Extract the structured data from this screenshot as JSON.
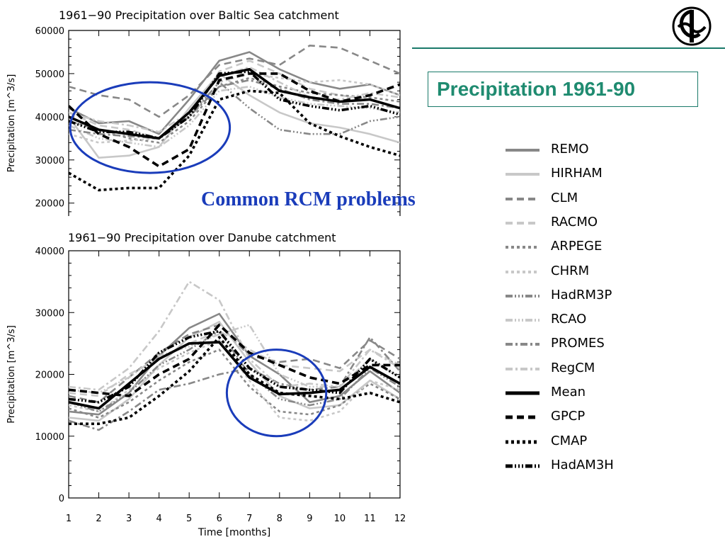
{
  "slide": {
    "title": "Precipitation 1961-90",
    "annotation": "Common RCM problems",
    "accent_color": "#1f8b70",
    "annotation_color": "#1a3cba",
    "logo_icon": "institute-logo-icon"
  },
  "legend": [
    {
      "name": "REMO",
      "color": "#888888",
      "dash": "solid",
      "width": 4
    },
    {
      "name": "HIRHAM",
      "color": "#c8c8c8",
      "dash": "solid",
      "width": 4
    },
    {
      "name": "CLM",
      "color": "#888888",
      "dash": "dash",
      "width": 4
    },
    {
      "name": "RACMO",
      "color": "#c8c8c8",
      "dash": "dash",
      "width": 4
    },
    {
      "name": "ARPEGE",
      "color": "#888888",
      "dash": "dot",
      "width": 4
    },
    {
      "name": "CHRM",
      "color": "#c8c8c8",
      "dash": "dot",
      "width": 4
    },
    {
      "name": "HadRM3P",
      "color": "#888888",
      "dash": "dashdot3",
      "width": 4
    },
    {
      "name": "RCAO",
      "color": "#c8c8c8",
      "dash": "dashdot3",
      "width": 4
    },
    {
      "name": "PROMES",
      "color": "#888888",
      "dash": "dashdot",
      "width": 4
    },
    {
      "name": "RegCM",
      "color": "#c8c8c8",
      "dash": "dashdot",
      "width": 4
    },
    {
      "name": "Mean",
      "color": "#000000",
      "dash": "solid",
      "width": 5
    },
    {
      "name": "GPCP",
      "color": "#000000",
      "dash": "dash",
      "width": 5
    },
    {
      "name": "CMAP",
      "color": "#000000",
      "dash": "dot",
      "width": 5
    },
    {
      "name": "HadAM3H",
      "color": "#000000",
      "dash": "dashdot3",
      "width": 5
    }
  ],
  "chart_data": [
    {
      "type": "line",
      "title": "1961−90 Precipitation over Baltic Sea catchment",
      "xlabel": "",
      "ylabel": "Precipitation [m^3/s]",
      "x": [
        1,
        2,
        3,
        4,
        5,
        6,
        7,
        8,
        9,
        10,
        11,
        12
      ],
      "xlim": [
        1,
        12
      ],
      "ylim_visible": [
        17000,
        60000
      ],
      "yticks": [
        20000,
        30000,
        40000,
        50000,
        60000
      ],
      "ytick_labels": [
        "20000",
        "30000",
        "40000",
        "50000",
        "60000"
      ],
      "highlight_ellipse": {
        "center": [
          3.7,
          37500
        ],
        "radius_months": 2.65,
        "radius_value": 10500,
        "color": "#1a3cba"
      },
      "series": [
        {
          "name": "REMO",
          "values": [
            42000,
            38500,
            39000,
            36000,
            44000,
            53000,
            55000,
            51000,
            48000,
            46500,
            47500,
            45000
          ]
        },
        {
          "name": "HIRHAM",
          "values": [
            40000,
            30500,
            31000,
            33000,
            42000,
            50000,
            45000,
            41000,
            38500,
            37500,
            36000,
            34000
          ]
        },
        {
          "name": "CLM",
          "values": [
            47000,
            45000,
            44000,
            40000,
            45000,
            52000,
            53500,
            52000,
            56500,
            56000,
            53000,
            50000
          ]
        },
        {
          "name": "RACMO",
          "values": [
            41000,
            38000,
            37000,
            35000,
            40000,
            50500,
            53000,
            50000,
            46500,
            45000,
            44000,
            42000
          ]
        },
        {
          "name": "ARPEGE",
          "values": [
            39000,
            37000,
            35000,
            34000,
            39000,
            47000,
            49000,
            47000,
            45500,
            45000,
            44500,
            43500
          ]
        },
        {
          "name": "CHRM",
          "values": [
            36000,
            34000,
            34500,
            35000,
            40000,
            48000,
            50000,
            49000,
            48000,
            48500,
            47500,
            45000
          ]
        },
        {
          "name": "HadRM3P",
          "values": [
            40000,
            37000,
            36000,
            35000,
            40000,
            48000,
            42000,
            37000,
            36000,
            36000,
            39000,
            40000
          ]
        },
        {
          "name": "RCAO",
          "values": [
            38000,
            35000,
            34000,
            33000,
            38000,
            46000,
            47000,
            44500,
            43000,
            42500,
            42000,
            41000
          ]
        },
        {
          "name": "PROMES",
          "values": [
            37000,
            36000,
            35500,
            35000,
            40000,
            47000,
            48500,
            46500,
            44000,
            43000,
            43000,
            42000
          ]
        },
        {
          "name": "RegCM",
          "values": [
            41000,
            39000,
            38000,
            36500,
            41000,
            49500,
            51500,
            48000,
            44500,
            44000,
            45500,
            44500
          ]
        },
        {
          "name": "Mean",
          "values": [
            40000,
            37000,
            36000,
            35000,
            41000,
            49500,
            51000,
            46000,
            44500,
            43500,
            44000,
            42000
          ]
        },
        {
          "name": "GPCP",
          "values": [
            42500,
            36000,
            33000,
            28500,
            32500,
            48500,
            50000,
            50000,
            46000,
            43500,
            45000,
            47500
          ]
        },
        {
          "name": "CMAP",
          "values": [
            27000,
            23000,
            23500,
            23500,
            31000,
            44000,
            46000,
            45500,
            38500,
            35500,
            33000,
            31000
          ]
        },
        {
          "name": "HadAM3H",
          "values": [
            39000,
            36500,
            36500,
            35000,
            40000,
            50000,
            50500,
            44000,
            42500,
            41500,
            42500,
            40500
          ]
        }
      ]
    },
    {
      "type": "line",
      "title": "1961−90 Precipitation over Danube catchment",
      "xlabel": "Time [months]",
      "ylabel": "Precipitation [m^3/s]",
      "x": [
        1,
        2,
        3,
        4,
        5,
        6,
        7,
        8,
        9,
        10,
        11,
        12
      ],
      "xlim": [
        1,
        12
      ],
      "ylim": [
        0,
        40000
      ],
      "yticks": [
        0,
        10000,
        20000,
        30000,
        40000
      ],
      "ytick_labels": [
        "0",
        "10000",
        "20000",
        "30000",
        "40000"
      ],
      "xtick_labels": [
        "1",
        "2",
        "3",
        "4",
        "5",
        "6",
        "7",
        "8",
        "9",
        "10",
        "11",
        "12"
      ],
      "highlight_ellipse": {
        "center": [
          7.9,
          17000
        ],
        "radius_months": 1.65,
        "radius_value": 7000,
        "color": "#1a3cba"
      },
      "series": [
        {
          "name": "REMO",
          "values": [
            14000,
            13500,
            17000,
            23000,
            27500,
            29800,
            23000,
            20000,
            15500,
            16500,
            20500,
            17000
          ]
        },
        {
          "name": "HIRHAM",
          "values": [
            13000,
            12500,
            16000,
            21500,
            26000,
            28500,
            22000,
            16500,
            14500,
            15000,
            19000,
            16000
          ]
        },
        {
          "name": "CLM",
          "values": [
            16500,
            15500,
            19500,
            23500,
            26500,
            28000,
            23000,
            22000,
            22500,
            21000,
            25500,
            22500
          ]
        },
        {
          "name": "RACMO",
          "values": [
            17000,
            16500,
            20000,
            22500,
            25000,
            27000,
            24000,
            21500,
            21000,
            20500,
            24000,
            21500
          ]
        },
        {
          "name": "ARPEGE",
          "values": [
            14500,
            13000,
            15500,
            19000,
            22000,
            24000,
            18000,
            14000,
            13500,
            15000,
            18500,
            16000
          ]
        },
        {
          "name": "CHRM",
          "values": [
            15000,
            14000,
            17500,
            21000,
            23500,
            25500,
            19000,
            13000,
            12500,
            14000,
            19000,
            17500
          ]
        },
        {
          "name": "HadRM3P",
          "values": [
            15500,
            14000,
            17000,
            21500,
            24000,
            27000,
            20000,
            16000,
            15000,
            16000,
            21000,
            18000
          ]
        },
        {
          "name": "RCAO",
          "values": [
            17500,
            17000,
            19500,
            23000,
            24500,
            26500,
            28000,
            20000,
            18000,
            18000,
            22500,
            19500
          ]
        },
        {
          "name": "PROMES",
          "values": [
            12500,
            11000,
            14000,
            17500,
            18500,
            20000,
            21000,
            18500,
            17500,
            18000,
            26000,
            20500
          ]
        },
        {
          "name": "RegCM",
          "values": [
            18000,
            17500,
            21000,
            27000,
            35000,
            32000,
            22500,
            18000,
            18500,
            18000,
            24000,
            21000
          ]
        },
        {
          "name": "Mean",
          "values": [
            15500,
            14500,
            18500,
            22500,
            25000,
            25200,
            19500,
            16800,
            17000,
            17500,
            21200,
            18500
          ]
        },
        {
          "name": "GPCP",
          "values": [
            17500,
            17000,
            16500,
            20000,
            22500,
            28000,
            23500,
            21500,
            19500,
            18500,
            21500,
            21500
          ]
        },
        {
          "name": "CMAP",
          "values": [
            12000,
            12000,
            13000,
            16500,
            20500,
            26000,
            20000,
            17000,
            16500,
            16000,
            17000,
            15500
          ]
        },
        {
          "name": "HadAM3H",
          "values": [
            16000,
            15500,
            18000,
            23500,
            26000,
            27000,
            21000,
            18000,
            17500,
            17000,
            22500,
            19500
          ]
        }
      ]
    }
  ]
}
